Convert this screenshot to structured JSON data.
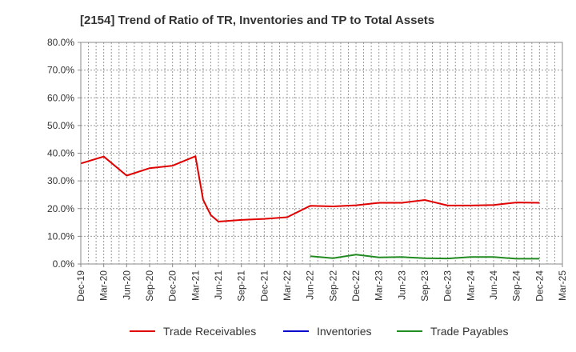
{
  "chart_data": {
    "type": "line",
    "title": "[2154]  Trend of Ratio of TR, Inventories and TP to Total Assets",
    "xlabel": "",
    "ylabel": "",
    "ylim": [
      0,
      80
    ],
    "y_ticks": [
      "0.0%",
      "10.0%",
      "20.0%",
      "30.0%",
      "40.0%",
      "50.0%",
      "60.0%",
      "70.0%",
      "80.0%"
    ],
    "x_ticks": [
      "Dec-19",
      "Mar-20",
      "Jun-20",
      "Sep-20",
      "Dec-20",
      "Mar-21",
      "Jun-21",
      "Sep-21",
      "Dec-21",
      "Mar-22",
      "Jun-22",
      "Sep-22",
      "Dec-22",
      "Mar-23",
      "Jun-23",
      "Sep-23",
      "Dec-23",
      "Mar-24",
      "Jun-24",
      "Sep-24",
      "Dec-24",
      "Mar-25"
    ],
    "grid": true,
    "legend_position": "bottom",
    "series": [
      {
        "name": "Trade Receivables",
        "color": "#e00000",
        "x": [
          "Dec-19",
          "Mar-20",
          "Jun-20",
          "Sep-20",
          "Dec-20",
          "Mar-21",
          "Apr-21",
          "May-21",
          "Jun-21",
          "Sep-21",
          "Dec-21",
          "Mar-22",
          "Jun-22",
          "Sep-22",
          "Dec-22",
          "Mar-23",
          "Jun-23",
          "Sep-23",
          "Dec-23",
          "Mar-24",
          "Jun-24",
          "Sep-24",
          "Dec-24"
        ],
        "values": [
          36.3,
          38.8,
          31.9,
          34.6,
          35.5,
          38.9,
          23.2,
          17.7,
          15.3,
          15.9,
          16.3,
          16.9,
          21.0,
          20.8,
          21.2,
          22.1,
          22.1,
          23.1,
          21.1,
          21.1,
          21.3,
          22.2,
          22.1
        ]
      },
      {
        "name": "Inventories",
        "color": "#0000cc",
        "x": [],
        "values": []
      },
      {
        "name": "Trade Payables",
        "color": "#228b22",
        "x": [
          "Jun-22",
          "Sep-22",
          "Dec-22",
          "Mar-23",
          "Jun-23",
          "Sep-23",
          "Dec-23",
          "Mar-24",
          "Jun-24",
          "Sep-24",
          "Dec-24"
        ],
        "values": [
          2.8,
          2.1,
          3.4,
          2.4,
          2.5,
          2.1,
          2.0,
          2.5,
          2.5,
          1.9,
          1.9
        ]
      }
    ]
  }
}
